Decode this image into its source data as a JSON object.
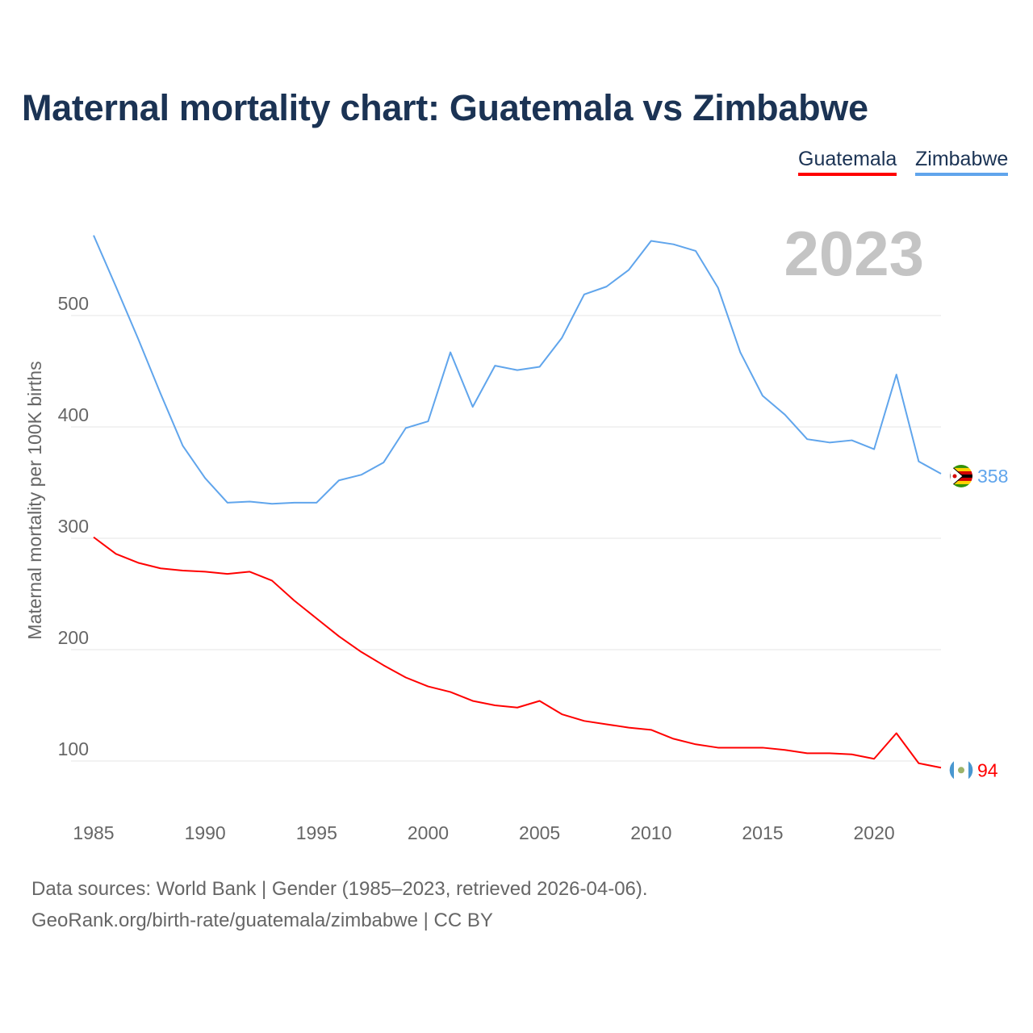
{
  "colors": {
    "Guatemala": "#ff0000",
    "Zimbabwe": "#60a5ec"
  },
  "chart_data": {
    "type": "line",
    "title": "Maternal mortality chart: Guatemala vs Zimbabwe",
    "ylabel": "Maternal mortality per 100K births",
    "xlabel": "",
    "year_label": "2023",
    "x": [
      1985,
      1986,
      1987,
      1988,
      1989,
      1990,
      1991,
      1992,
      1993,
      1994,
      1995,
      1996,
      1997,
      1998,
      1999,
      2000,
      2001,
      2002,
      2003,
      2004,
      2005,
      2006,
      2007,
      2008,
      2009,
      2010,
      2011,
      2012,
      2013,
      2014,
      2015,
      2016,
      2017,
      2018,
      2019,
      2020,
      2021,
      2022,
      2023
    ],
    "xticks": [
      "1985",
      "1990",
      "1995",
      "2000",
      "2005",
      "2010",
      "2015",
      "2020"
    ],
    "yticks": [
      "100",
      "200",
      "300",
      "400",
      "500"
    ],
    "xlim": [
      1985,
      2023
    ],
    "ylim": [
      55,
      590
    ],
    "legend": "top-right",
    "series": [
      {
        "name": "Guatemala",
        "end_label": "94",
        "values": [
          301,
          286,
          278,
          273,
          271,
          270,
          268,
          270,
          262,
          244,
          228,
          212,
          198,
          186,
          175,
          167,
          162,
          154,
          150,
          148,
          154,
          142,
          136,
          133,
          130,
          128,
          120,
          115,
          112,
          112,
          112,
          110,
          107,
          107,
          106,
          102,
          125,
          98,
          94
        ]
      },
      {
        "name": "Zimbabwe",
        "end_label": "358",
        "values": [
          572,
          526,
          479,
          430,
          383,
          354,
          332,
          333,
          331,
          332,
          332,
          352,
          357,
          368,
          399,
          405,
          467,
          418,
          455,
          451,
          454,
          480,
          519,
          526,
          541,
          567,
          564,
          558,
          525,
          467,
          428,
          411,
          389,
          386,
          388,
          380,
          447,
          369,
          358
        ]
      }
    ]
  },
  "footer": {
    "line1": "Data sources: World Bank | Gender (1985–2023, retrieved 2026-04-06).",
    "line2": "GeoRank.org/birth-rate/guatemala/zimbabwe | CC BY"
  }
}
